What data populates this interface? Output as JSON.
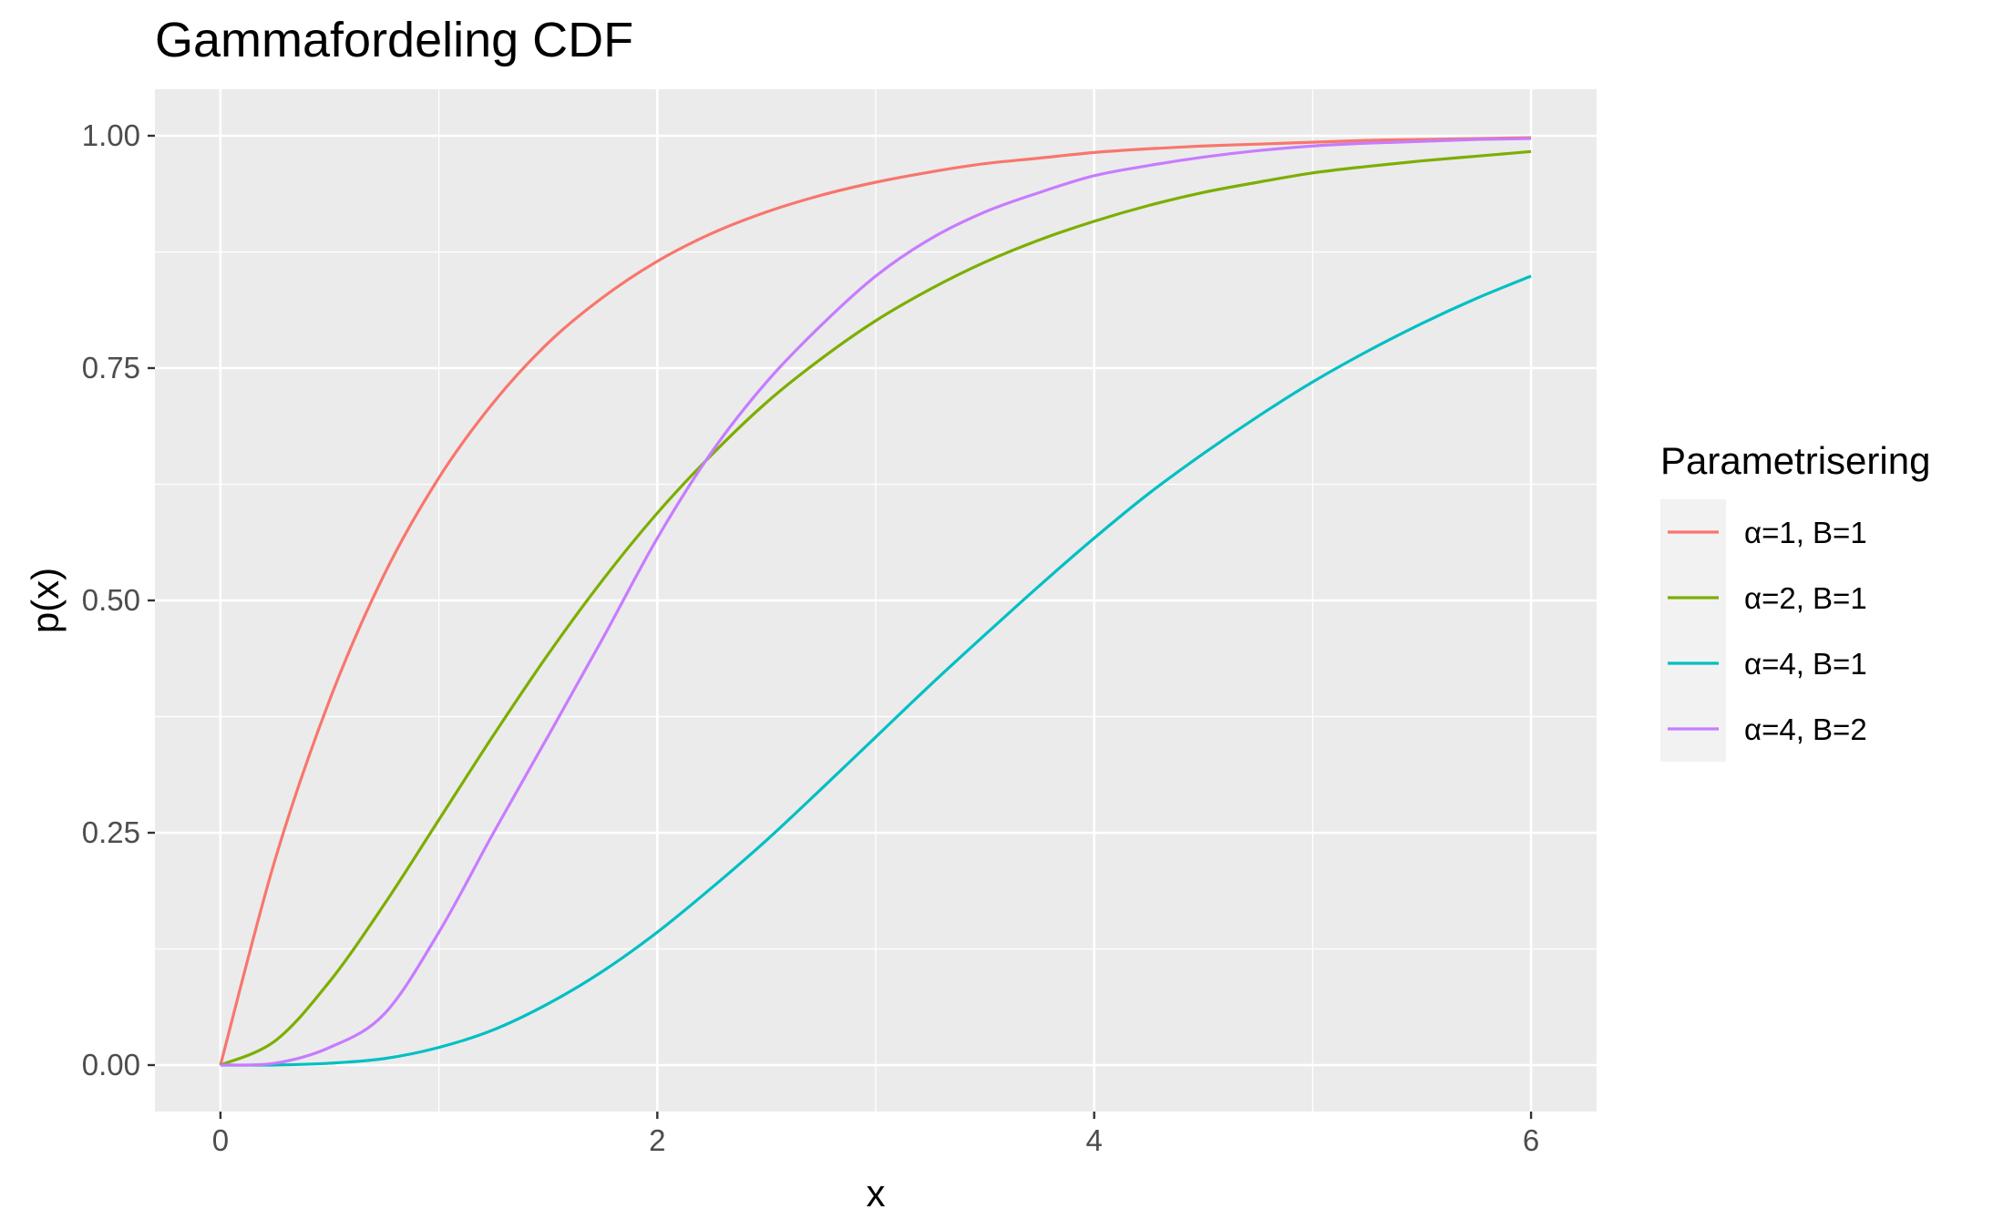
{
  "chart_data": {
    "type": "line",
    "title": "Gammafordeling CDF",
    "xlabel": "x",
    "ylabel": "p(x)",
    "xlim": [
      -0.3,
      6.3
    ],
    "ylim": [
      -0.05,
      1.05
    ],
    "x_ticks": [
      0,
      2,
      4,
      6
    ],
    "x_tick_labels": [
      "0",
      "2",
      "4",
      "6"
    ],
    "y_ticks": [
      0,
      0.25,
      0.5,
      0.75,
      1.0
    ],
    "y_tick_labels": [
      "0.00",
      "0.25",
      "0.50",
      "0.75",
      "1.00"
    ],
    "grid": true,
    "legend_title": "Parametrisering",
    "legend_position": "right",
    "x": [
      0,
      0.25,
      0.5,
      0.75,
      1,
      1.25,
      1.5,
      1.75,
      2,
      2.25,
      2.5,
      2.75,
      3,
      3.25,
      3.5,
      3.75,
      4,
      4.25,
      4.5,
      4.75,
      5,
      5.25,
      5.5,
      5.75,
      6
    ],
    "series": [
      {
        "name": "α=1, B=1",
        "color": "#F8766D",
        "values": [
          0,
          0.221,
          0.393,
          0.528,
          0.632,
          0.713,
          0.777,
          0.826,
          0.865,
          0.895,
          0.918,
          0.936,
          0.95,
          0.961,
          0.97,
          0.976,
          0.982,
          0.986,
          0.989,
          0.991,
          0.993,
          0.995,
          0.996,
          0.997,
          0.998
        ]
      },
      {
        "name": "α=2, B=1",
        "color": "#7CAE00",
        "values": [
          0,
          0.026,
          0.09,
          0.173,
          0.264,
          0.355,
          0.442,
          0.522,
          0.594,
          0.657,
          0.713,
          0.76,
          0.801,
          0.835,
          0.864,
          0.888,
          0.908,
          0.925,
          0.939,
          0.95,
          0.96,
          0.967,
          0.973,
          0.978,
          0.983
        ]
      },
      {
        "name": "α=4, B=1",
        "color": "#00BFC4",
        "values": [
          0,
          0.0001,
          0.002,
          0.007,
          0.019,
          0.038,
          0.066,
          0.101,
          0.143,
          0.191,
          0.242,
          0.297,
          0.353,
          0.409,
          0.463,
          0.516,
          0.567,
          0.615,
          0.658,
          0.698,
          0.735,
          0.768,
          0.798,
          0.825,
          0.849
        ]
      },
      {
        "name": "α=4, B=2",
        "color": "#C77CFF",
        "values": [
          0,
          0.002,
          0.019,
          0.055,
          0.143,
          0.25,
          0.354,
          0.459,
          0.567,
          0.66,
          0.735,
          0.796,
          0.849,
          0.889,
          0.918,
          0.939,
          0.957,
          0.968,
          0.977,
          0.984,
          0.989,
          0.992,
          0.994,
          0.996,
          0.997
        ]
      }
    ]
  }
}
